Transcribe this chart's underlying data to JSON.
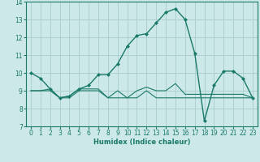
{
  "xlabel": "Humidex (Indice chaleur)",
  "bg_color": "#cde8e8",
  "line_color": "#1a7a6a",
  "grid_color": "#aed0d0",
  "xlim": [
    -0.5,
    23.5
  ],
  "ylim": [
    7,
    14
  ],
  "yticks": [
    7,
    8,
    9,
    10,
    11,
    12,
    13,
    14
  ],
  "xticks": [
    0,
    1,
    2,
    3,
    4,
    5,
    6,
    7,
    8,
    9,
    10,
    11,
    12,
    13,
    14,
    15,
    16,
    17,
    18,
    19,
    20,
    21,
    22,
    23
  ],
  "line1_x": [
    0,
    1,
    2,
    3,
    4,
    5,
    6,
    7,
    8,
    9,
    10,
    11,
    12,
    13,
    14,
    15,
    16,
    17,
    18,
    19,
    20,
    21,
    22,
    23
  ],
  "line1_y": [
    10.0,
    9.7,
    9.1,
    8.6,
    8.7,
    9.1,
    9.3,
    9.9,
    9.9,
    10.5,
    11.5,
    12.1,
    12.2,
    12.8,
    13.4,
    13.6,
    13.0,
    11.1,
    7.3,
    9.3,
    10.1,
    10.1,
    9.7,
    8.6
  ],
  "line2_x": [
    0,
    1,
    2,
    3,
    4,
    5,
    6,
    7,
    8,
    9,
    10,
    11,
    12,
    13,
    14,
    15,
    16,
    17,
    18,
    19,
    20,
    21,
    22,
    23
  ],
  "line2_y": [
    9.0,
    9.0,
    9.1,
    8.6,
    8.7,
    9.1,
    9.1,
    9.1,
    8.6,
    9.0,
    8.6,
    9.0,
    9.2,
    9.0,
    9.0,
    9.4,
    8.8,
    8.8,
    8.8,
    8.8,
    8.8,
    8.8,
    8.8,
    8.6
  ],
  "line3_x": [
    0,
    1,
    2,
    3,
    4,
    5,
    6,
    7,
    8,
    9,
    10,
    11,
    12,
    13,
    14,
    15,
    16,
    17,
    18,
    19,
    20,
    21,
    22,
    23
  ],
  "line3_y": [
    9.0,
    9.0,
    9.0,
    8.6,
    8.6,
    9.0,
    9.0,
    9.0,
    8.6,
    8.6,
    8.6,
    8.6,
    9.0,
    8.6,
    8.6,
    8.6,
    8.6,
    8.6,
    8.6,
    8.6,
    8.6,
    8.6,
    8.6,
    8.6
  ],
  "xlabel_fontsize": 6.0,
  "tick_fontsize": 5.5
}
